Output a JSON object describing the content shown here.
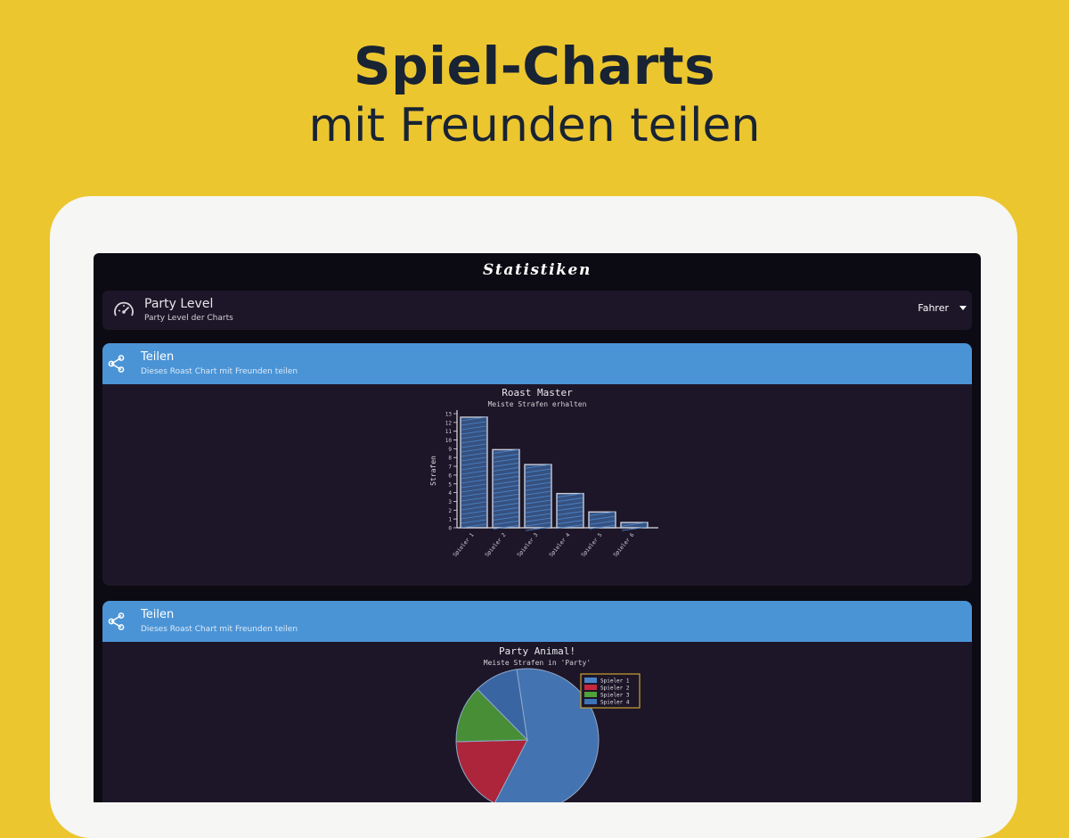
{
  "headline": {
    "line1": "Spiel-Charts",
    "line2": "mit Freunden teilen"
  },
  "appbar": {
    "title": "Statistiken"
  },
  "level_card": {
    "title": "Party Level",
    "subtitle": "Party Level der Charts",
    "selected_option": "Fahrer",
    "icon": "speedometer-icon"
  },
  "share_cards": [
    {
      "title": "Teilen",
      "subtitle": "Dieses Roast Chart mit Freunden teilen",
      "icon": "share-icon",
      "chart_data": {
        "type": "bar",
        "title": "Roast Master",
        "subtitle": "Meiste Strafen erhalten",
        "ylabel": "Strafen",
        "xlabel": "",
        "categories": [
          "Spieler 1",
          "Spieler 2",
          "Spieler 3",
          "Spieler 4",
          "Spieler 5",
          "Spieler 6"
        ],
        "values": [
          12.6,
          8.9,
          7.2,
          3.9,
          1.8,
          0.6
        ],
        "ylim": [
          0,
          13
        ],
        "yticks": [
          0,
          1,
          2,
          3,
          4,
          5,
          6,
          7,
          8,
          9,
          10,
          11,
          12,
          13
        ],
        "color": "#4a84c8",
        "grid": false
      }
    },
    {
      "title": "Teilen",
      "subtitle": "Dieses Roast Chart mit Freunden teilen",
      "icon": "share-icon",
      "chart_data": {
        "type": "pie",
        "title": "Party Animal!",
        "subtitle": "Meiste Strafen in 'Party'",
        "labels": [
          "Spieler 1",
          "Spieler 2",
          "Spieler 3",
          "Spieler 4"
        ],
        "values": [
          60,
          17,
          13,
          10
        ],
        "colors": [
          "#4a84c8",
          "#c5283d",
          "#4fa33a",
          "#3e73b8"
        ],
        "legend": "right"
      }
    }
  ]
}
